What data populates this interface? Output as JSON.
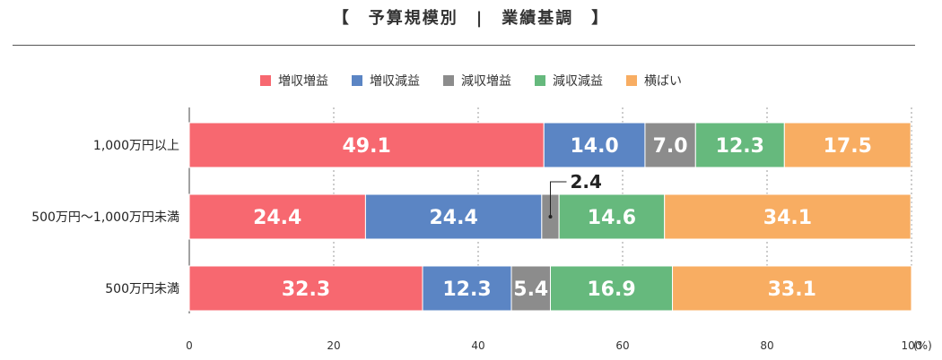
{
  "title": "【　予算規模別　|　業績基調　】",
  "legend": [
    {
      "label": "増収増益",
      "color": "#f76870"
    },
    {
      "label": "増収減益",
      "color": "#5b85c4"
    },
    {
      "label": "減収増益",
      "color": "#8c8c8c"
    },
    {
      "label": "減収減益",
      "color": "#66b97d"
    },
    {
      "label": "横ばい",
      "color": "#f8ad62"
    }
  ],
  "chart_data": {
    "type": "bar",
    "orientation": "horizontal",
    "stacked": true,
    "categories": [
      "1,000万円以上",
      "500万円～1,000万円未満",
      "500万円未満"
    ],
    "series": [
      {
        "name": "増収増益",
        "values": [
          49.1,
          24.4,
          32.3
        ]
      },
      {
        "name": "増収減益",
        "values": [
          14.0,
          24.4,
          12.3
        ]
      },
      {
        "name": "減収増益",
        "values": [
          7.0,
          2.4,
          5.4
        ]
      },
      {
        "name": "減収減益",
        "values": [
          12.3,
          14.6,
          16.9
        ]
      },
      {
        "name": "横ばい",
        "values": [
          17.5,
          34.1,
          33.1
        ]
      }
    ],
    "xlim": [
      0,
      100
    ],
    "xticks": [
      "0",
      "20",
      "40",
      "60",
      "80",
      "100"
    ],
    "xunit": "(%)",
    "callout": {
      "text": "2.4",
      "category": "500万円～1,000万円未満",
      "series": "減収増益"
    },
    "grid": true,
    "legend_position": "top"
  }
}
